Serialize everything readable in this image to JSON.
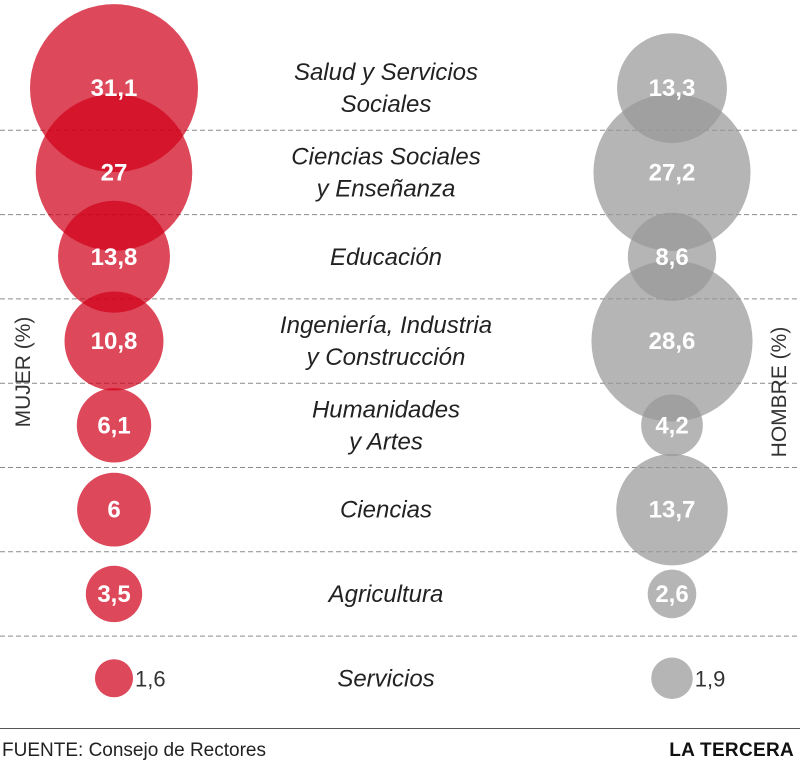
{
  "chart_data": {
    "type": "bubble",
    "categories": [
      [
        "Salud y Servicios",
        "Sociales"
      ],
      [
        "Ciencias Sociales",
        "y Enseñanza"
      ],
      [
        "Educación"
      ],
      [
        "Ingeniería, Industria",
        "y Construcción"
      ],
      [
        "Humanidades",
        "y Artes"
      ],
      [
        "Ciencias"
      ],
      [
        "Agricultura"
      ],
      [
        "Servicios"
      ]
    ],
    "series": [
      {
        "name": "MUJER (%)",
        "color": "#d0021b",
        "values": [
          31.1,
          27,
          13.8,
          10.8,
          6.1,
          6,
          3.5,
          1.6
        ],
        "labels": [
          "31,1",
          "27",
          "13,8",
          "10,8",
          "6,1",
          "6",
          "3,5",
          "1,6"
        ]
      },
      {
        "name": "HOMBRE (%)",
        "color": "#999999",
        "values": [
          13.3,
          27.2,
          8.6,
          28.6,
          4.2,
          13.7,
          2.6,
          1.9
        ],
        "labels": [
          "13,3",
          "27,2",
          "8,6",
          "28,6",
          "4,2",
          "13,7",
          "2,6",
          "1,9"
        ]
      }
    ],
    "grid": true
  },
  "footer": {
    "source_label": "FUENTE:",
    "source": "Consejo de Rectores",
    "credit": "LA TERCERA"
  }
}
